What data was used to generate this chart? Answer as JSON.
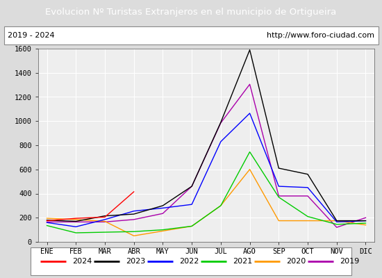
{
  "title": "Evolucion Nº Turistas Extranjeros en el municipio de Ortigueira",
  "subtitle_left": "2019 - 2024",
  "subtitle_right": "http://www.foro-ciudad.com",
  "months": [
    "ENE",
    "FEB",
    "MAR",
    "ABR",
    "MAY",
    "JUN",
    "JUL",
    "AGO",
    "SEP",
    "OCT",
    "NOV",
    "DIC"
  ],
  "title_bg_color": "#4a90d9",
  "title_text_color": "white",
  "plot_bg_color": "#eeeeee",
  "grid_color": "white",
  "outer_bg_color": "#dcdcdc",
  "ylim": [
    0,
    1600
  ],
  "yticks": [
    0,
    200,
    400,
    600,
    800,
    1000,
    1200,
    1400,
    1600
  ],
  "series": {
    "2024": {
      "color": "#ff0000",
      "values": [
        175,
        195,
        205,
        415,
        null,
        null,
        null,
        null,
        null,
        null,
        null,
        null
      ]
    },
    "2023": {
      "color": "#000000",
      "values": [
        180,
        170,
        215,
        230,
        300,
        460,
        990,
        1590,
        610,
        560,
        175,
        175
      ]
    },
    "2022": {
      "color": "#0000ff",
      "values": [
        160,
        125,
        185,
        255,
        280,
        310,
        830,
        1065,
        460,
        450,
        165,
        175
      ]
    },
    "2021": {
      "color": "#00cc00",
      "values": [
        135,
        75,
        80,
        85,
        100,
        130,
        300,
        745,
        370,
        210,
        145,
        155
      ]
    },
    "2020": {
      "color": "#ff9900",
      "values": [
        195,
        185,
        170,
        50,
        90,
        130,
        300,
        600,
        175,
        175,
        175,
        140
      ]
    },
    "2019": {
      "color": "#aa00aa",
      "values": [
        165,
        165,
        165,
        185,
        235,
        460,
        985,
        1305,
        380,
        380,
        120,
        200
      ]
    }
  },
  "legend_order": [
    "2024",
    "2023",
    "2022",
    "2021",
    "2020",
    "2019"
  ]
}
